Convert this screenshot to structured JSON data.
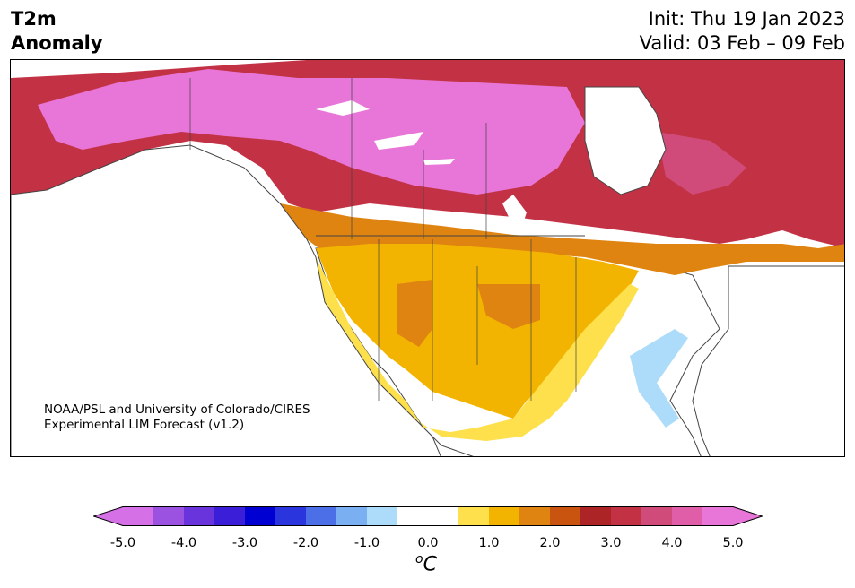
{
  "header": {
    "title_line1": "T2m",
    "title_line2": "Anomaly",
    "init_label": "Init: Thu 19 Jan 2023",
    "valid_label": "Valid: 03 Feb – 09 Feb"
  },
  "map": {
    "region": "North America",
    "credit_line1": "NOAA/PSL and University of Colorado/CIRES",
    "credit_line2": "Experimental LIM Forecast (v1.2)"
  },
  "colorbar": {
    "ticks": [
      "-5.0",
      "-4.0",
      "-3.0",
      "-2.0",
      "-1.0",
      "0.0",
      "1.0",
      "2.0",
      "3.0",
      "4.0",
      "5.0"
    ],
    "unit_base": "C",
    "unit_prefix": "o",
    "colors": [
      "#d570e6",
      "#9b52e0",
      "#6a34dc",
      "#3b1fd8",
      "#0000d2",
      "#2a35de",
      "#4c6ee6",
      "#7ab0f2",
      "#acdcfa",
      "#ffffff",
      "#ffffff",
      "#fde04b",
      "#f2b400",
      "#df8410",
      "#c85410",
      "#ad2426",
      "#c23244",
      "#d04b7a",
      "#e05ea8",
      "#e876d8"
    ],
    "under_color": "#d570e6",
    "over_color": "#e876d8"
  }
}
